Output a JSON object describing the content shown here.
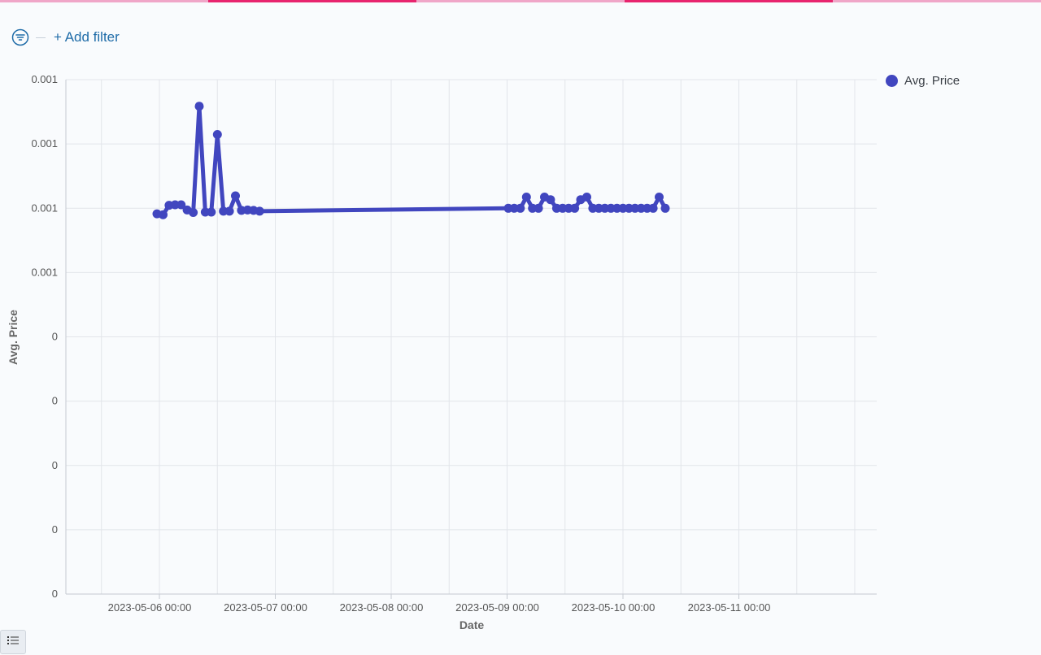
{
  "toolbar": {
    "add_filter_label": "+ Add filter",
    "filter_icon": "filter-icon"
  },
  "colors": {
    "series": "#4146bf",
    "accent_pink": "#e8246e",
    "accent_pink_light": "#f0a6c8",
    "link": "#1f6ca8"
  },
  "legend": {
    "label": "Avg. Price"
  },
  "chart_data": {
    "type": "line",
    "xlabel": "Date",
    "ylabel": "Avg. Price",
    "x_ticks": [
      "2023-05-06 00:00",
      "2023-05-07 00:00",
      "2023-05-08 00:00",
      "2023-05-09 00:00",
      "2023-05-10 00:00",
      "2023-05-11 00:00"
    ],
    "y_ticks": [
      "0.001",
      "0.001",
      "0.001",
      "0.001",
      "0",
      "0",
      "0",
      "0",
      "0"
    ],
    "ylim": [
      0,
      0.0012
    ],
    "grid": true,
    "legend_position": "top-right",
    "series": [
      {
        "name": "Avg. Price",
        "points": [
          [
            "2023-05-05 23:30",
            0.000887
          ],
          [
            "2023-05-06 00:45",
            0.000885
          ],
          [
            "2023-05-06 02:00",
            0.000907
          ],
          [
            "2023-05-06 03:15",
            0.000908
          ],
          [
            "2023-05-06 04:30",
            0.000908
          ],
          [
            "2023-05-06 05:45",
            0.000896
          ],
          [
            "2023-05-06 07:00",
            0.00089
          ],
          [
            "2023-05-06 08:15",
            0.001138
          ],
          [
            "2023-05-06 09:30",
            0.000891
          ],
          [
            "2023-05-06 10:45",
            0.000891
          ],
          [
            "2023-05-06 12:00",
            0.001072
          ],
          [
            "2023-05-06 13:15",
            0.000893
          ],
          [
            "2023-05-06 14:30",
            0.000893
          ],
          [
            "2023-05-06 15:45",
            0.000929
          ],
          [
            "2023-05-06 17:00",
            0.000895
          ],
          [
            "2023-05-06 18:15",
            0.000896
          ],
          [
            "2023-05-06 19:30",
            0.000895
          ],
          [
            "2023-05-06 20:45",
            0.000893
          ],
          [
            "2023-05-09 00:15",
            0.0009
          ],
          [
            "2023-05-09 01:30",
            0.0009
          ],
          [
            "2023-05-09 02:45",
            0.0009
          ],
          [
            "2023-05-09 04:00",
            0.000926
          ],
          [
            "2023-05-09 05:15",
            0.0009
          ],
          [
            "2023-05-09 06:30",
            0.0009
          ],
          [
            "2023-05-09 07:45",
            0.000926
          ],
          [
            "2023-05-09 09:00",
            0.00092
          ],
          [
            "2023-05-09 10:15",
            0.0009
          ],
          [
            "2023-05-09 11:30",
            0.0009
          ],
          [
            "2023-05-09 12:45",
            0.0009
          ],
          [
            "2023-05-09 14:00",
            0.0009
          ],
          [
            "2023-05-09 15:15",
            0.00092
          ],
          [
            "2023-05-09 16:30",
            0.000926
          ],
          [
            "2023-05-09 17:45",
            0.0009
          ],
          [
            "2023-05-09 19:00",
            0.0009
          ],
          [
            "2023-05-09 20:15",
            0.0009
          ],
          [
            "2023-05-09 21:30",
            0.0009
          ],
          [
            "2023-05-09 22:45",
            0.0009
          ],
          [
            "2023-05-10 00:00",
            0.0009
          ],
          [
            "2023-05-10 01:15",
            0.0009
          ],
          [
            "2023-05-10 02:30",
            0.0009
          ],
          [
            "2023-05-10 03:45",
            0.0009
          ],
          [
            "2023-05-10 05:00",
            0.0009
          ],
          [
            "2023-05-10 06:15",
            0.0009
          ],
          [
            "2023-05-10 07:30",
            0.000926
          ],
          [
            "2023-05-10 08:45",
            0.0009
          ]
        ]
      }
    ]
  }
}
